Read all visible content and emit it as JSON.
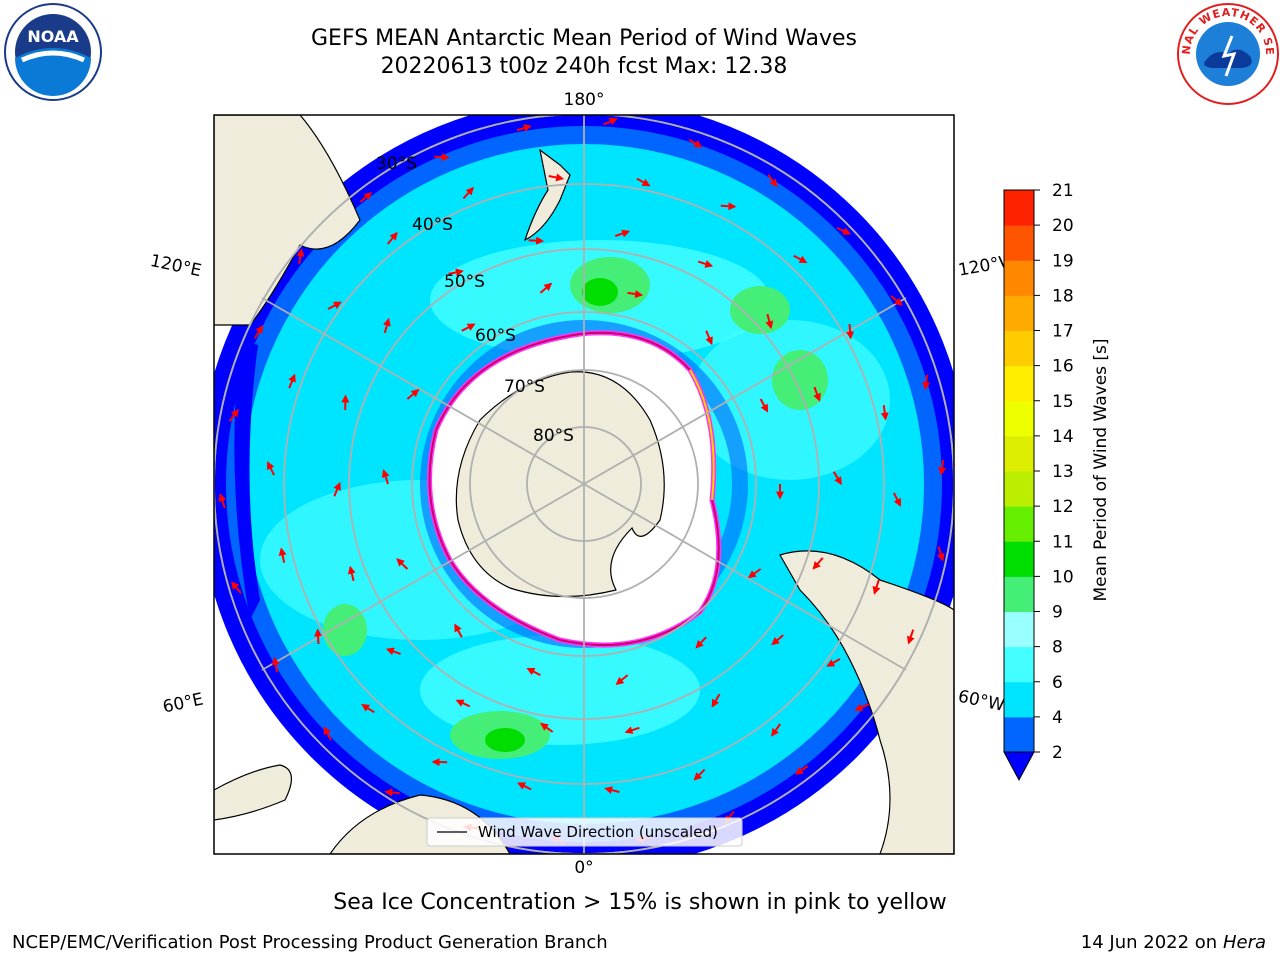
{
  "header": {
    "title_line1": "GEFS MEAN Antarctic Mean Period of Wind Waves",
    "title_line2": "20220613 t00z 240h fcst   Max: 12.38"
  },
  "logos": {
    "left": {
      "icon": "noaa-logo",
      "text": "NOAA"
    },
    "right": {
      "icon": "nws-logo",
      "text": "NATIONAL WEATHER SERVICE"
    }
  },
  "map": {
    "projection": "south-polar-stereographic",
    "lon_labels": [
      "180°",
      "120°E",
      "120°W",
      "60°E",
      "60°W",
      "0°"
    ],
    "lat_labels": [
      "30°S",
      "40°S",
      "50°S",
      "60°S",
      "70°S",
      "80°S"
    ],
    "legend_label": "Wind Wave Direction (unscaled)",
    "colors": {
      "land": "#efecdc",
      "ice": "#ffffff",
      "ice_edge": [
        "#ff33ff",
        "#cc0066",
        "#ffd700"
      ],
      "arrow": "#ff0000"
    }
  },
  "colorbar": {
    "label": "Mean Period of Wind Waves [s]",
    "ticks": [
      "2",
      "4",
      "6",
      "8",
      "9",
      "10",
      "11",
      "12",
      "13",
      "14",
      "15",
      "16",
      "17",
      "18",
      "19",
      "20",
      "21"
    ],
    "colors": [
      "#0066ff",
      "#00e5ff",
      "#44ffff",
      "#99ffff",
      "#44ee77",
      "#00dd00",
      "#66ee00",
      "#bbee00",
      "#ddee00",
      "#eeff00",
      "#ffee00",
      "#ffcc00",
      "#ffaa00",
      "#ff8800",
      "#ff5500",
      "#ff2200",
      "#ff0000"
    ],
    "under_color": "#0000ff"
  },
  "note": "Sea Ice Concentration > 15% is shown in pink to yellow",
  "footer": {
    "left": "NCEP/EMC/Verification Post Processing Product Generation Branch",
    "date": "14 Jun 2022 on",
    "host": "Hera"
  }
}
